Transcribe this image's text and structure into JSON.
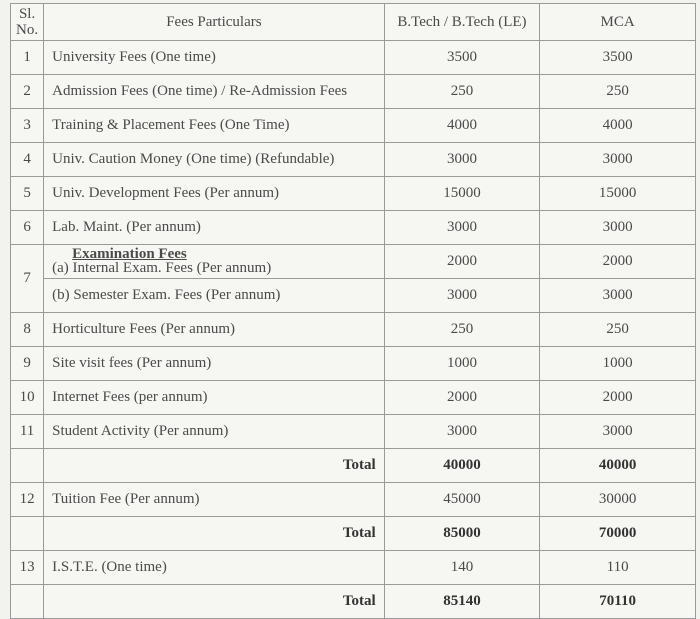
{
  "headers": {
    "sl_no": "Sl. No.",
    "particulars": "Fees Particulars",
    "btech": "B.Tech / B.Tech (LE)",
    "mca": "MCA"
  },
  "rows": [
    {
      "sl": "1",
      "particulars": "University Fees (One time)",
      "btech": "3500",
      "mca": "3500"
    },
    {
      "sl": "2",
      "particulars": "Admission Fees (One time) / Re-Admission Fees",
      "btech": "250",
      "mca": "250"
    },
    {
      "sl": "3",
      "particulars": "Training & Placement Fees (One Time)",
      "btech": "4000",
      "mca": "4000"
    },
    {
      "sl": "4",
      "particulars": "Univ. Caution Money (One time) (Refundable)",
      "btech": "3000",
      "mca": "3000"
    },
    {
      "sl": "5",
      "particulars": "Univ. Development Fees (Per annum)",
      "btech": "15000",
      "mca": "15000"
    },
    {
      "sl": "6",
      "particulars": "Lab. Maint. (Per annum)",
      "btech": "3000",
      "mca": "3000"
    }
  ],
  "exam": {
    "sl": "7",
    "heading": "Examination Fees",
    "sub": [
      {
        "particulars": "(a)  Internal Exam. Fees (Per annum)",
        "btech": "2000",
        "mca": "2000"
      },
      {
        "particulars": "(b) Semester Exam. Fees (Per annum)",
        "btech": "3000",
        "mca": "3000"
      }
    ]
  },
  "rows2": [
    {
      "sl": "8",
      "particulars": "Horticulture Fees (Per annum)",
      "btech": "250",
      "mca": "250"
    },
    {
      "sl": "9",
      "particulars": "Site visit fees (Per annum)",
      "btech": "1000",
      "mca": "1000"
    },
    {
      "sl": "10",
      "particulars": "Internet Fees (per annum)",
      "btech": "2000",
      "mca": "2000"
    },
    {
      "sl": "11",
      "particulars": "Student Activity (Per annum)",
      "btech": "3000",
      "mca": "3000"
    }
  ],
  "total1": {
    "label": "Total",
    "btech": "40000",
    "mca": "40000"
  },
  "row12": {
    "sl": "12",
    "particulars": "Tuition Fee (Per annum)",
    "btech": "45000",
    "mca": "30000"
  },
  "total2": {
    "label": "Total",
    "btech": "85000",
    "mca": "70000"
  },
  "row13": {
    "sl": "13",
    "particulars": "I.S.T.E. (One time)",
    "btech": "140",
    "mca": "110"
  },
  "total3": {
    "label": "Total",
    "btech": "85140",
    "mca": "70110"
  }
}
